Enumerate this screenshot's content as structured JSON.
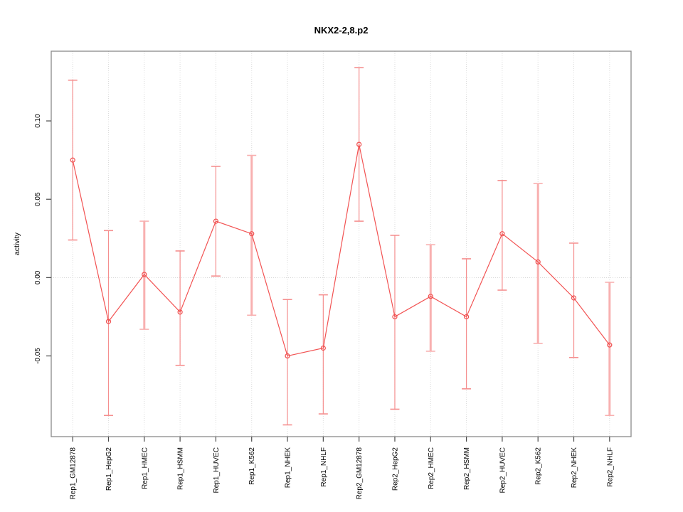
{
  "chart_data": {
    "type": "line",
    "title": "NKX2-2,8.p2",
    "xlabel": "",
    "ylabel": "activity",
    "legend": "none",
    "grid": "dotted vertical gridline per category; dotted horizontal line at 0.00",
    "categories": [
      "Rep1_GM12878",
      "Rep1_HepG2",
      "Rep1_HMEC",
      "Rep1_HSMM",
      "Rep1_HUVEC",
      "Rep1_K562",
      "Rep1_NHEK",
      "Rep1_NHLF",
      "Rep2_GM12878",
      "Rep2_HepG2",
      "Rep2_HMEC",
      "Rep2_HSMM",
      "Rep2_HUVEC",
      "Rep2_K562",
      "Rep2_NHEK",
      "Rep2_NHLF"
    ],
    "series": [
      {
        "name": "activity",
        "marker": "open-circle",
        "values": [
          0.075,
          -0.028,
          0.002,
          -0.022,
          0.036,
          0.028,
          -0.05,
          -0.045,
          0.085,
          -0.025,
          -0.012,
          -0.025,
          0.028,
          0.01,
          -0.013,
          -0.043
        ],
        "upper": [
          0.126,
          0.03,
          0.036,
          0.017,
          0.071,
          0.078,
          -0.014,
          -0.011,
          0.134,
          0.027,
          0.021,
          0.012,
          0.062,
          0.06,
          0.022,
          -0.003
        ],
        "lower": [
          0.024,
          -0.088,
          -0.033,
          -0.056,
          0.001,
          -0.024,
          -0.094,
          -0.087,
          0.036,
          -0.084,
          -0.047,
          -0.071,
          -0.008,
          -0.042,
          -0.051,
          -0.088
        ]
      }
    ],
    "thick_error_bar_indices": [
      2,
      5,
      10,
      13,
      15
    ],
    "y_ticks": [
      -0.05,
      0,
      0.05,
      0.1
    ],
    "y_tick_labels": [
      "-0.05",
      "0.00",
      "0.05",
      "0.10"
    ],
    "ylim": [
      -0.1015,
      0.1445
    ],
    "colors": {
      "line": "#f25353",
      "marker": "#f04f4f",
      "error_bar": "#f58f8f",
      "error_bar_thick": "#f8b0b0",
      "grid": "#dcdcdc",
      "zero_line": "#d4d4d4",
      "frame": "#8a8a8a",
      "tick": "#4a4a4a",
      "text": "#000000"
    }
  }
}
